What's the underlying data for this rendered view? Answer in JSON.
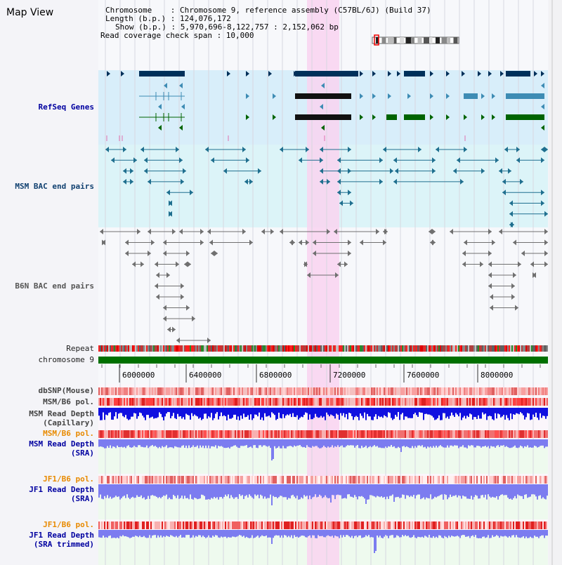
{
  "title": "Map View",
  "header": {
    "line1": "Chromosome    : Chromosome 9, reference assembly (C57BL/6J) (Build 37)",
    "line2": "Length (b.p.) : 124,076,172",
    "line3": "Show (b.p.) : 5,970,696-8,122,757 : 2,152,062 bp",
    "line4": "Read coverage check span : 10,000"
  },
  "tracks": {
    "refseq": "RefSeq Genes",
    "msm_bac": "MSM BAC end pairs",
    "b6n_bac": "B6N BAC end pairs",
    "repeat": "Repeat",
    "chromosome": "chromosome 9",
    "dbsnp": "dbSNP(Mouse)",
    "msm_b6_pol_a": "MSM/B6 pol.",
    "msm_depth_cap_1": "MSM Read Depth",
    "msm_depth_cap_2": "(Capillary)",
    "msm_b6_pol_b": "MSM/B6 pol.",
    "msm_depth_sra_1": "MSM Read Depth",
    "msm_depth_sra_2": "(SRA)",
    "jf1_b6_pol_a": "JF1/B6 pol.",
    "jf1_depth_sra_1": "JF1 Read Depth",
    "jf1_depth_sra_2": "(SRA)",
    "jf1_b6_pol_b": "JF1/B6 pol.",
    "jf1_depth_trim_1": "JF1 Read Depth",
    "jf1_depth_trim_2": "(SRA trimmed)"
  },
  "axis": {
    "ticks": [
      "6000000",
      "6400000",
      "6800000",
      "7200000",
      "7600000",
      "8000000"
    ]
  },
  "colors": {
    "refseq_bg": "#d8eefa",
    "msm_bg": "#dcf4f8",
    "highlight": "#f9d4f0",
    "gene_dark": "#00305a",
    "gene_mid": "#3e8cb4",
    "gene_green": "#006400",
    "msm_pair": "#1f6f8f",
    "b6n_pair": "#707070",
    "chromosome_bar": "#007000",
    "depth_cap": "#1010e0",
    "depth_sra": "#7c7cf0",
    "pol_orange": "#e88a00",
    "label_blue": "#0000a0"
  }
}
